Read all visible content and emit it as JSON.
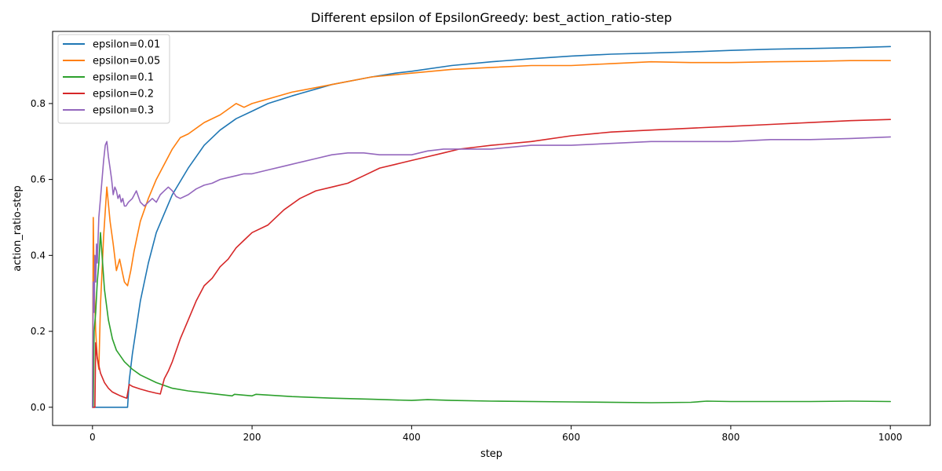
{
  "chart_data": {
    "type": "line",
    "title": "Different epsilon of EpsilonGreedy: best_action_ratio-step",
    "xlabel": "step",
    "ylabel": "action_ratio-step",
    "xlim": [
      -50,
      1050
    ],
    "ylim": [
      -0.048,
      0.99
    ],
    "xticks": [
      0,
      200,
      400,
      600,
      800,
      1000
    ],
    "yticks": [
      0.0,
      0.2,
      0.4,
      0.6,
      0.8
    ],
    "ytick_labels": [
      "0.0",
      "0.2",
      "0.4",
      "0.6",
      "0.8"
    ],
    "xtick_labels": [
      "0",
      "200",
      "400",
      "600",
      "800",
      "1000"
    ],
    "grid": false,
    "legend_position": "upper-left",
    "series": [
      {
        "name": "epsilon=0.01",
        "color": "#1f77b4",
        "x": [
          0,
          2,
          4,
          10,
          20,
          30,
          40,
          44,
          46,
          50,
          55,
          60,
          70,
          80,
          90,
          100,
          120,
          140,
          160,
          180,
          200,
          220,
          250,
          300,
          350,
          380,
          400,
          450,
          500,
          550,
          600,
          650,
          700,
          750,
          800,
          850,
          900,
          950,
          1000
        ],
        "y": [
          0.0,
          0.0,
          0.0,
          0.0,
          0.0,
          0.0,
          0.0,
          0.0,
          0.07,
          0.14,
          0.21,
          0.28,
          0.38,
          0.46,
          0.51,
          0.56,
          0.63,
          0.69,
          0.73,
          0.76,
          0.78,
          0.8,
          0.82,
          0.85,
          0.87,
          0.88,
          0.885,
          0.9,
          0.91,
          0.918,
          0.925,
          0.93,
          0.933,
          0.936,
          0.94,
          0.943,
          0.945,
          0.947,
          0.95
        ]
      },
      {
        "name": "epsilon=0.05",
        "color": "#ff7f0e",
        "x": [
          0,
          1,
          2,
          4,
          6,
          8,
          10,
          14,
          18,
          22,
          26,
          30,
          34,
          38,
          40,
          44,
          48,
          52,
          56,
          60,
          70,
          80,
          90,
          100,
          110,
          120,
          140,
          160,
          180,
          190,
          200,
          250,
          300,
          350,
          400,
          450,
          500,
          550,
          600,
          650,
          700,
          750,
          800,
          850,
          900,
          950,
          1000
        ],
        "y": [
          0.0,
          0.5,
          0.33,
          0.2,
          0.13,
          0.1,
          0.27,
          0.45,
          0.58,
          0.49,
          0.43,
          0.36,
          0.39,
          0.35,
          0.33,
          0.32,
          0.36,
          0.41,
          0.45,
          0.49,
          0.55,
          0.6,
          0.64,
          0.68,
          0.71,
          0.72,
          0.75,
          0.77,
          0.8,
          0.79,
          0.8,
          0.83,
          0.85,
          0.87,
          0.88,
          0.89,
          0.895,
          0.9,
          0.9,
          0.905,
          0.91,
          0.908,
          0.908,
          0.91,
          0.911,
          0.913,
          0.913
        ]
      },
      {
        "name": "epsilon=0.1",
        "color": "#2ca02c",
        "x": [
          0,
          1,
          2,
          4,
          6,
          8,
          10,
          15,
          20,
          25,
          30,
          40,
          50,
          60,
          80,
          100,
          120,
          150,
          175,
          178,
          200,
          205,
          250,
          300,
          350,
          400,
          420,
          450,
          500,
          600,
          700,
          750,
          770,
          800,
          900,
          950,
          1000
        ],
        "y": [
          0.0,
          0.0,
          0.2,
          0.25,
          0.33,
          0.38,
          0.46,
          0.31,
          0.23,
          0.18,
          0.15,
          0.12,
          0.1,
          0.085,
          0.065,
          0.05,
          0.043,
          0.036,
          0.03,
          0.034,
          0.03,
          0.034,
          0.028,
          0.024,
          0.021,
          0.018,
          0.02,
          0.018,
          0.016,
          0.014,
          0.012,
          0.013,
          0.016,
          0.015,
          0.015,
          0.016,
          0.015
        ]
      },
      {
        "name": "epsilon=0.2",
        "color": "#d62728",
        "x": [
          0,
          1,
          2,
          3,
          4,
          6,
          8,
          10,
          15,
          20,
          25,
          30,
          35,
          40,
          43,
          46,
          50,
          60,
          70,
          80,
          85,
          90,
          95,
          100,
          110,
          120,
          130,
          140,
          150,
          160,
          170,
          180,
          190,
          200,
          220,
          240,
          260,
          280,
          300,
          320,
          340,
          360,
          380,
          400,
          420,
          440,
          460,
          480,
          500,
          550,
          600,
          650,
          700,
          750,
          800,
          850,
          900,
          950,
          1000
        ],
        "y": [
          0.0,
          0.0,
          0.0,
          0.0,
          0.17,
          0.13,
          0.11,
          0.09,
          0.065,
          0.05,
          0.04,
          0.035,
          0.03,
          0.026,
          0.024,
          0.06,
          0.055,
          0.048,
          0.042,
          0.037,
          0.035,
          0.075,
          0.095,
          0.12,
          0.18,
          0.23,
          0.28,
          0.32,
          0.34,
          0.37,
          0.39,
          0.42,
          0.44,
          0.46,
          0.48,
          0.52,
          0.55,
          0.57,
          0.58,
          0.59,
          0.61,
          0.63,
          0.64,
          0.65,
          0.66,
          0.67,
          0.68,
          0.685,
          0.69,
          0.7,
          0.715,
          0.725,
          0.73,
          0.735,
          0.74,
          0.745,
          0.75,
          0.755,
          0.758
        ]
      },
      {
        "name": "epsilon=0.3",
        "color": "#9467bd",
        "x": [
          0,
          1,
          2,
          3,
          4,
          5,
          6,
          8,
          10,
          12,
          14,
          16,
          18,
          20,
          22,
          24,
          26,
          28,
          30,
          32,
          34,
          36,
          38,
          40,
          42,
          45,
          50,
          55,
          60,
          65,
          70,
          75,
          80,
          85,
          90,
          95,
          100,
          105,
          110,
          120,
          130,
          140,
          150,
          160,
          170,
          180,
          190,
          200,
          220,
          240,
          260,
          280,
          300,
          320,
          340,
          360,
          380,
          400,
          420,
          440,
          460,
          480,
          500,
          550,
          600,
          650,
          700,
          750,
          800,
          850,
          900,
          950,
          1000
        ],
        "y": [
          0.0,
          0.33,
          0.25,
          0.4,
          0.33,
          0.43,
          0.38,
          0.5,
          0.55,
          0.6,
          0.65,
          0.69,
          0.7,
          0.66,
          0.63,
          0.6,
          0.56,
          0.58,
          0.57,
          0.55,
          0.56,
          0.54,
          0.55,
          0.53,
          0.53,
          0.54,
          0.55,
          0.57,
          0.54,
          0.53,
          0.54,
          0.55,
          0.54,
          0.56,
          0.57,
          0.58,
          0.57,
          0.555,
          0.55,
          0.56,
          0.575,
          0.585,
          0.59,
          0.6,
          0.605,
          0.61,
          0.615,
          0.615,
          0.625,
          0.635,
          0.645,
          0.655,
          0.665,
          0.67,
          0.67,
          0.665,
          0.665,
          0.665,
          0.675,
          0.68,
          0.68,
          0.68,
          0.68,
          0.69,
          0.69,
          0.695,
          0.7,
          0.7,
          0.7,
          0.705,
          0.705,
          0.708,
          0.712
        ]
      }
    ]
  }
}
